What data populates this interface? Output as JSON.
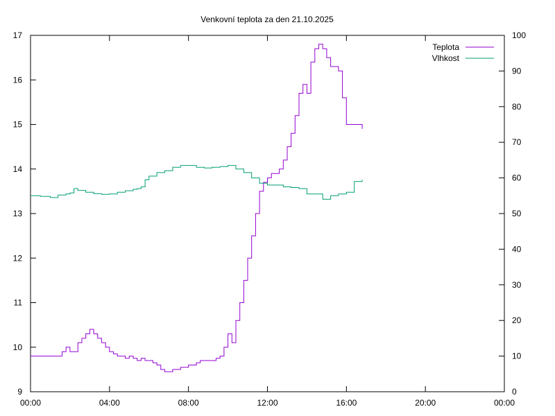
{
  "chart_data": {
    "type": "line",
    "title": "Venkovní teplota za den 21.10.2025",
    "xlabel": "",
    "ylabel": "",
    "y2label": "",
    "x_ticks": [
      "00:00",
      "04:00",
      "08:00",
      "12:00",
      "16:00",
      "20:00",
      "00:00"
    ],
    "xlim_hours": [
      0,
      24
    ],
    "ylim": [
      9,
      17
    ],
    "y_ticks": [
      "9",
      "10",
      "11",
      "12",
      "13",
      "14",
      "15",
      "16",
      "17"
    ],
    "y2lim": [
      0,
      100
    ],
    "y2_ticks": [
      "0",
      "10",
      "20",
      "30",
      "40",
      "50",
      "60",
      "70",
      "80",
      "90",
      "100"
    ],
    "grid": false,
    "legend_position": "top-right",
    "series": [
      {
        "name": "Teplota",
        "axis": "left",
        "color": "#9400d3",
        "x_hours": [
          0,
          0.5,
          1.0,
          1.4,
          1.6,
          1.8,
          2.0,
          2.2,
          2.4,
          2.6,
          2.8,
          3.0,
          3.2,
          3.4,
          3.6,
          3.8,
          4.0,
          4.2,
          4.4,
          4.6,
          4.8,
          5.0,
          5.2,
          5.4,
          5.6,
          5.8,
          6.0,
          6.2,
          6.4,
          6.6,
          6.8,
          7.0,
          7.2,
          7.4,
          7.6,
          7.8,
          8.0,
          8.2,
          8.4,
          8.6,
          8.8,
          9.0,
          9.2,
          9.4,
          9.6,
          9.8,
          10.0,
          10.2,
          10.4,
          10.6,
          10.8,
          11.0,
          11.2,
          11.4,
          11.6,
          11.8,
          12.0,
          12.2,
          12.4,
          12.6,
          12.8,
          13.0,
          13.2,
          13.4,
          13.6,
          13.8,
          14.0,
          14.2,
          14.4,
          14.6,
          14.8,
          15.0,
          15.2,
          15.4,
          15.6,
          15.8,
          16.0,
          16.2,
          16.4,
          16.6,
          16.8
        ],
        "values": [
          9.8,
          9.8,
          9.8,
          9.8,
          9.9,
          10.0,
          9.9,
          9.9,
          10.1,
          10.2,
          10.3,
          10.4,
          10.3,
          10.2,
          10.1,
          10.0,
          9.9,
          9.85,
          9.8,
          9.8,
          9.75,
          9.8,
          9.75,
          9.7,
          9.75,
          9.7,
          9.7,
          9.65,
          9.6,
          9.5,
          9.45,
          9.45,
          9.5,
          9.5,
          9.55,
          9.55,
          9.6,
          9.6,
          9.65,
          9.7,
          9.7,
          9.7,
          9.7,
          9.75,
          9.8,
          10.0,
          10.3,
          10.1,
          10.6,
          11.0,
          11.5,
          12.0,
          12.5,
          13.0,
          13.5,
          13.7,
          13.8,
          13.9,
          13.9,
          14.0,
          14.2,
          14.5,
          14.8,
          15.2,
          15.7,
          15.9,
          15.7,
          16.4,
          16.7,
          16.8,
          16.7,
          16.5,
          16.3,
          16.3,
          16.2,
          15.6,
          15.0,
          15.0,
          15.0,
          15.0,
          14.9
        ]
      },
      {
        "name": "Vlhkost",
        "axis": "right",
        "color": "#009e73",
        "x_hours": [
          0,
          0.5,
          1.0,
          1.4,
          1.8,
          2.0,
          2.2,
          2.4,
          2.8,
          3.2,
          3.6,
          4.0,
          4.4,
          4.8,
          5.2,
          5.4,
          5.6,
          5.8,
          6.0,
          6.4,
          6.8,
          7.2,
          7.6,
          8.0,
          8.4,
          8.8,
          9.2,
          9.6,
          10.0,
          10.4,
          10.8,
          11.2,
          11.6,
          12.0,
          12.4,
          12.8,
          13.2,
          13.6,
          14.0,
          14.4,
          14.8,
          15.2,
          15.6,
          16.0,
          16.4,
          16.8
        ],
        "values": [
          55.0,
          54.8,
          54.5,
          55.2,
          55.5,
          55.8,
          57.0,
          56.5,
          56.0,
          55.6,
          55.4,
          55.5,
          56.0,
          56.4,
          56.8,
          57.0,
          57.5,
          59.5,
          60.5,
          61.5,
          62.0,
          63.0,
          63.5,
          63.5,
          63.0,
          62.8,
          63.0,
          63.2,
          63.5,
          62.5,
          61.5,
          60.0,
          58.5,
          58.0,
          58.0,
          57.5,
          57.3,
          57.0,
          55.5,
          55.5,
          54.0,
          55.0,
          55.5,
          56.0,
          59.0,
          59.5
        ]
      }
    ]
  }
}
